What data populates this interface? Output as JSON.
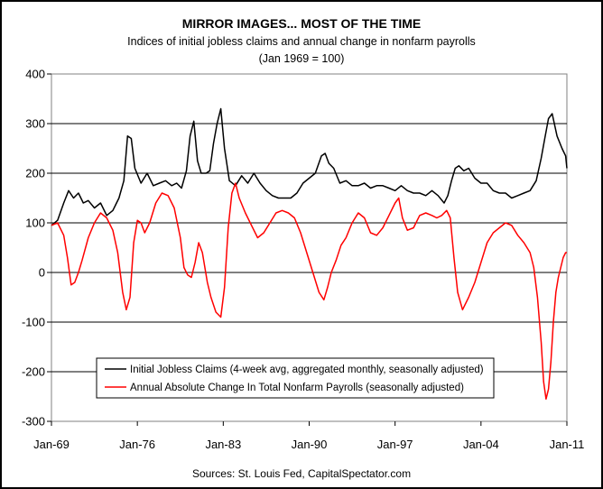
{
  "chart_data": {
    "type": "line",
    "title": "MIRROR IMAGES... MOST OF THE TIME",
    "subtitle": "Indices of initial jobless claims and annual change in nonfarm payrolls",
    "subtitle2": "(Jan 1969 = 100)",
    "source": "Sources: St. Louis Fed, CapitalSpectator.com",
    "x_tick_labels": [
      "Jan-69",
      "Jan-76",
      "Jan-83",
      "Jan-90",
      "Jan-97",
      "Jan-04",
      "Jan-11"
    ],
    "x_tick_years": [
      1969,
      1976,
      1983,
      1990,
      1997,
      2004,
      2011
    ],
    "xlim": [
      1969,
      2011
    ],
    "ylim": [
      -300,
      400
    ],
    "y_ticks": [
      -300,
      -200,
      -100,
      0,
      100,
      200,
      300,
      400
    ],
    "grid": true,
    "legend_position": "lower-center",
    "series": [
      {
        "name": "Initial Jobless Claims (4-week avg, aggregated monthly, seasonally adjusted)",
        "color": "#000000",
        "x": [
          1969.0,
          1969.5,
          1970.0,
          1970.4,
          1970.8,
          1971.2,
          1971.6,
          1972.0,
          1972.5,
          1973.0,
          1973.5,
          1974.0,
          1974.5,
          1974.9,
          1975.2,
          1975.5,
          1975.8,
          1976.3,
          1976.8,
          1977.3,
          1977.8,
          1978.3,
          1978.8,
          1979.2,
          1979.6,
          1980.0,
          1980.3,
          1980.6,
          1980.9,
          1981.2,
          1981.6,
          1981.9,
          1982.2,
          1982.5,
          1982.8,
          1983.1,
          1983.5,
          1984.0,
          1984.5,
          1985.0,
          1985.5,
          1986.0,
          1986.5,
          1987.0,
          1987.5,
          1988.0,
          1988.5,
          1989.0,
          1989.5,
          1990.0,
          1990.5,
          1991.0,
          1991.3,
          1991.6,
          1992.0,
          1992.5,
          1993.0,
          1993.5,
          1994.0,
          1994.5,
          1995.0,
          1995.5,
          1996.0,
          1996.5,
          1997.0,
          1997.5,
          1998.0,
          1998.5,
          1999.0,
          1999.5,
          2000.0,
          2000.5,
          2001.0,
          2001.3,
          2001.6,
          2001.9,
          2002.2,
          2002.6,
          2003.0,
          2003.5,
          2004.0,
          2004.5,
          2005.0,
          2005.5,
          2006.0,
          2006.5,
          2007.0,
          2007.5,
          2008.0,
          2008.5,
          2008.9,
          2009.2,
          2009.5,
          2009.8,
          2010.2,
          2010.6,
          2010.9,
          2011.0
        ],
        "y": [
          95,
          105,
          140,
          165,
          150,
          160,
          140,
          145,
          130,
          140,
          115,
          125,
          150,
          185,
          275,
          270,
          210,
          180,
          200,
          175,
          180,
          185,
          175,
          180,
          170,
          205,
          275,
          305,
          225,
          200,
          200,
          205,
          260,
          300,
          330,
          250,
          185,
          175,
          195,
          180,
          200,
          180,
          165,
          155,
          150,
          150,
          150,
          160,
          180,
          190,
          200,
          235,
          240,
          220,
          210,
          180,
          185,
          175,
          175,
          180,
          170,
          175,
          175,
          170,
          165,
          175,
          165,
          160,
          160,
          155,
          165,
          155,
          140,
          155,
          185,
          210,
          215,
          205,
          210,
          190,
          180,
          180,
          165,
          160,
          160,
          150,
          155,
          160,
          165,
          185,
          230,
          270,
          310,
          320,
          275,
          250,
          235,
          210
        ]
      },
      {
        "name": "Annual Absolute Change In Total Nonfarm Payrolls (seasonally adjusted)",
        "color": "#ff0000",
        "x": [
          1969.0,
          1969.5,
          1970.0,
          1970.3,
          1970.6,
          1970.9,
          1971.2,
          1971.5,
          1972.0,
          1972.5,
          1973.0,
          1973.5,
          1974.0,
          1974.4,
          1974.8,
          1975.1,
          1975.4,
          1975.7,
          1976.0,
          1976.3,
          1976.6,
          1977.0,
          1977.5,
          1978.0,
          1978.5,
          1979.0,
          1979.5,
          1979.8,
          1980.1,
          1980.4,
          1980.7,
          1981.0,
          1981.3,
          1981.7,
          1982.0,
          1982.4,
          1982.8,
          1983.1,
          1983.4,
          1983.7,
          1984.0,
          1984.3,
          1984.8,
          1985.3,
          1985.8,
          1986.3,
          1986.8,
          1987.3,
          1987.8,
          1988.3,
          1988.8,
          1989.3,
          1989.8,
          1990.3,
          1990.8,
          1991.2,
          1991.5,
          1991.8,
          1992.2,
          1992.6,
          1993.0,
          1993.5,
          1994.0,
          1994.5,
          1995.0,
          1995.5,
          1996.0,
          1996.5,
          1997.0,
          1997.3,
          1997.6,
          1998.0,
          1998.5,
          1999.0,
          1999.5,
          2000.0,
          2000.4,
          2000.8,
          2001.2,
          2001.5,
          2001.8,
          2002.1,
          2002.5,
          2003.0,
          2003.5,
          2004.0,
          2004.5,
          2005.0,
          2005.5,
          2006.0,
          2006.5,
          2007.0,
          2007.5,
          2008.0,
          2008.3,
          2008.6,
          2008.9,
          2009.1,
          2009.3,
          2009.5,
          2009.7,
          2009.9,
          2010.1,
          2010.3,
          2010.5,
          2010.7,
          2010.9,
          2011.0
        ],
        "y": [
          95,
          100,
          75,
          30,
          -25,
          -20,
          0,
          25,
          70,
          100,
          120,
          110,
          85,
          40,
          -40,
          -75,
          -50,
          60,
          105,
          100,
          80,
          100,
          140,
          160,
          155,
          130,
          70,
          10,
          -5,
          -10,
          20,
          60,
          40,
          -20,
          -50,
          -80,
          -90,
          -30,
          90,
          160,
          180,
          150,
          120,
          95,
          70,
          80,
          100,
          120,
          125,
          120,
          110,
          80,
          40,
          0,
          -40,
          -55,
          -30,
          0,
          25,
          55,
          70,
          100,
          120,
          110,
          80,
          75,
          90,
          115,
          140,
          150,
          110,
          85,
          90,
          115,
          120,
          115,
          110,
          115,
          125,
          110,
          30,
          -40,
          -75,
          -50,
          -20,
          20,
          60,
          80,
          90,
          100,
          95,
          75,
          60,
          40,
          10,
          -50,
          -140,
          -220,
          -255,
          -235,
          -180,
          -100,
          -40,
          -10,
          10,
          30,
          40,
          40
        ]
      }
    ]
  }
}
